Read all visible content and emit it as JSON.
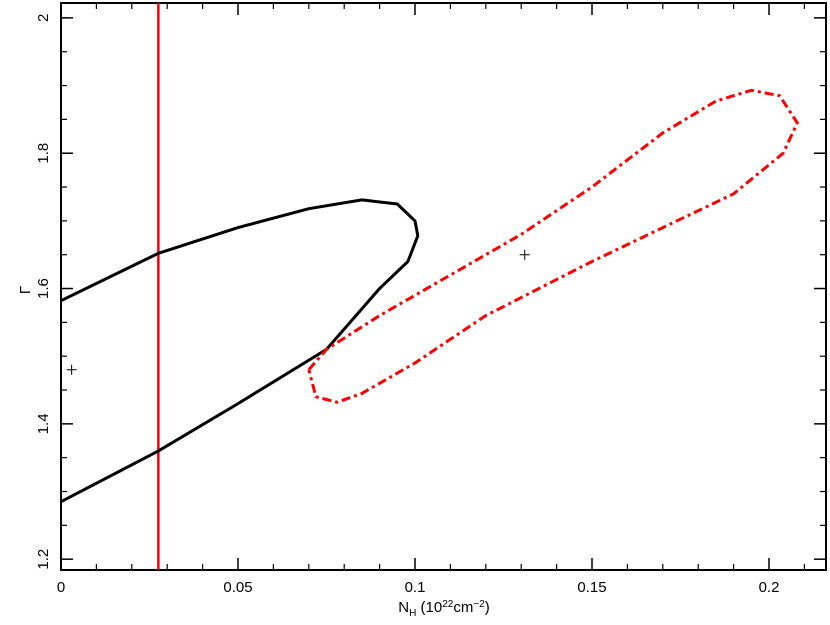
{
  "chart_data": {
    "type": "contour",
    "y_label": "Γ",
    "x_label_parts": [
      "N",
      "H",
      " (10",
      "22",
      "cm",
      "−2",
      ")"
    ],
    "xlim": [
      0,
      0.2161
    ],
    "ylim": [
      1.184,
      2.022
    ],
    "xticks": [
      0,
      0.05,
      0.1,
      0.15,
      0.2
    ],
    "yticks": [
      1.2,
      1.4,
      1.6,
      1.8,
      2
    ],
    "xminorticks": [
      0.01,
      0.02,
      0.03,
      0.04,
      0.06,
      0.07,
      0.08,
      0.09,
      0.11,
      0.12,
      0.13,
      0.14,
      0.16,
      0.17,
      0.18,
      0.19,
      0.21
    ],
    "yminorticks": [
      1.25,
      1.3,
      1.35,
      1.45,
      1.5,
      1.55,
      1.65,
      1.7,
      1.75,
      1.85,
      1.9,
      1.95,
      2.0
    ],
    "series": [
      {
        "color": "#000000",
        "style": "solid",
        "x": [
          0,
          0.0275,
          0.05,
          0.07,
          0.085,
          0.095,
          0.1,
          0.1008,
          0.098,
          0.09,
          0.075,
          0.05,
          0.0275,
          0
        ],
        "values": [
          1.582,
          1.652,
          1.69,
          1.718,
          1.731,
          1.725,
          1.7,
          1.678,
          1.64,
          1.6,
          1.51,
          1.43,
          1.36,
          1.285
        ]
      },
      {
        "color": "#ff0000",
        "style": "dashed",
        "x": [
          0.07,
          0.075,
          0.09,
          0.11,
          0.13,
          0.15,
          0.17,
          0.185,
          0.195,
          0.203,
          0.208,
          0.204,
          0.19,
          0.17,
          0.15,
          0.12,
          0.1,
          0.085,
          0.078,
          0.072,
          0.07
        ],
        "values": [
          1.48,
          1.51,
          1.56,
          1.62,
          1.68,
          1.75,
          1.83,
          1.877,
          1.893,
          1.885,
          1.845,
          1.8,
          1.74,
          1.69,
          1.64,
          1.56,
          1.49,
          1.445,
          1.432,
          1.44,
          1.48
        ]
      }
    ],
    "vlines": [
      {
        "x": 0.0275,
        "color": "#ff0000"
      }
    ],
    "points": {
      "x": [
        0.003,
        0.131
      ],
      "values": [
        1.48,
        1.65
      ],
      "color": "#000000"
    }
  }
}
